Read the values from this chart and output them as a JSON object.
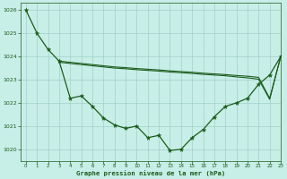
{
  "title": "Graphe pression niveau de la mer (hPa)",
  "background_color": "#c8eee8",
  "grid_color": "#a0d0c8",
  "line_color": "#1a5c1a",
  "xlim": [
    -0.5,
    23
  ],
  "ylim": [
    1019.5,
    1026.3
  ],
  "yticks": [
    1020,
    1021,
    1022,
    1023,
    1024,
    1025,
    1026
  ],
  "xticks": [
    0,
    1,
    2,
    3,
    4,
    5,
    6,
    7,
    8,
    9,
    10,
    11,
    12,
    13,
    14,
    15,
    16,
    17,
    18,
    19,
    20,
    21,
    22,
    23
  ],
  "series": [
    {
      "x": [
        0,
        1,
        2,
        3,
        4,
        5,
        6,
        7,
        8,
        9,
        10,
        11,
        12,
        13,
        14,
        15,
        16,
        17,
        18,
        19,
        20,
        21,
        22,
        23
      ],
      "y": [
        1026.0,
        1025.0,
        1024.3,
        1023.8,
        1022.2,
        1022.3,
        1021.85,
        1021.35,
        1021.05,
        1020.9,
        1021.0,
        1020.5,
        1020.6,
        1019.95,
        1020.0,
        1020.5,
        1020.85,
        1021.4,
        1021.85,
        1022.0,
        1022.2,
        1022.8,
        1023.2,
        1024.0
      ],
      "marker": "*",
      "markersize": 3.5,
      "linewidth": 0.9
    },
    {
      "x": [
        3,
        4,
        5,
        6,
        7,
        8,
        9,
        10,
        11,
        12,
        13,
        14,
        15,
        16,
        17,
        18,
        19,
        20,
        21,
        22,
        23
      ],
      "y": [
        1023.8,
        1023.75,
        1023.7,
        1023.65,
        1023.6,
        1023.55,
        1023.52,
        1023.48,
        1023.45,
        1023.42,
        1023.38,
        1023.35,
        1023.32,
        1023.28,
        1023.25,
        1023.22,
        1023.18,
        1023.15,
        1023.1,
        1022.2,
        1024.0
      ],
      "marker": null,
      "markersize": 0,
      "linewidth": 0.8
    },
    {
      "x": [
        3,
        4,
        5,
        6,
        7,
        8,
        9,
        10,
        11,
        12,
        13,
        14,
        15,
        16,
        17,
        18,
        19,
        20,
        21,
        22,
        23
      ],
      "y": [
        1023.75,
        1023.7,
        1023.65,
        1023.6,
        1023.55,
        1023.5,
        1023.47,
        1023.43,
        1023.4,
        1023.37,
        1023.33,
        1023.3,
        1023.27,
        1023.23,
        1023.2,
        1023.17,
        1023.12,
        1023.08,
        1023.02,
        1022.15,
        1024.0
      ],
      "marker": null,
      "markersize": 0,
      "linewidth": 0.8
    }
  ]
}
